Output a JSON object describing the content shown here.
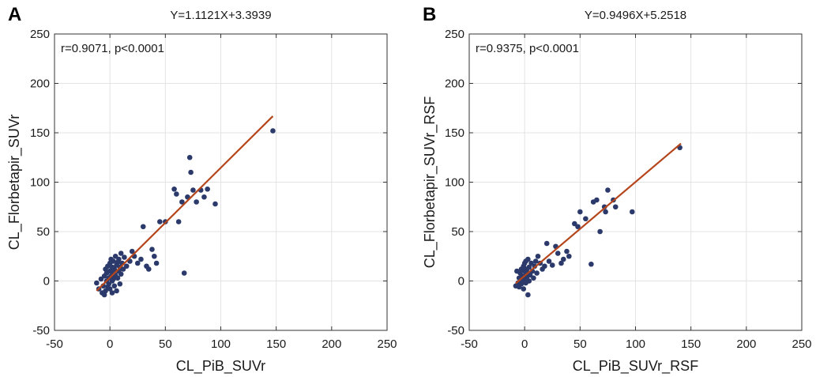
{
  "chart_data": [
    {
      "type": "scatter",
      "panel_letter": "A",
      "title": "Y=1.1121X+3.3939",
      "annotation": "r=0.9071, p<0.0001",
      "xlabel": "CL_PiB_SUVr",
      "ylabel": "CL_Florbetapir_SUVr",
      "xlim": [
        -50,
        250
      ],
      "ylim": [
        -50,
        250
      ],
      "xticks": [
        "-50",
        "0",
        "50",
        "100",
        "150",
        "200",
        "250"
      ],
      "yticks": [
        "-50",
        "0",
        "50",
        "100",
        "150",
        "200",
        "250"
      ],
      "grid": true,
      "marker_color": "#2b3a6b",
      "fit_color": "#b5451b",
      "fit": {
        "slope": 1.1121,
        "intercept": 3.3939,
        "x_range": [
          -12,
          147
        ]
      },
      "points": [
        [
          -12,
          -2
        ],
        [
          -10,
          -8
        ],
        [
          -8,
          2
        ],
        [
          -7,
          -12
        ],
        [
          -6,
          -5
        ],
        [
          -5,
          5
        ],
        [
          -5,
          -14
        ],
        [
          -4,
          -10
        ],
        [
          -4,
          12
        ],
        [
          -3,
          0
        ],
        [
          -3,
          8
        ],
        [
          -2,
          -6
        ],
        [
          -2,
          15
        ],
        [
          -1,
          3
        ],
        [
          -1,
          -3
        ],
        [
          0,
          10
        ],
        [
          0,
          18
        ],
        [
          0,
          -8
        ],
        [
          1,
          5
        ],
        [
          1,
          22
        ],
        [
          2,
          0
        ],
        [
          2,
          14
        ],
        [
          2,
          -12
        ],
        [
          3,
          8
        ],
        [
          3,
          20
        ],
        [
          3,
          2
        ],
        [
          4,
          -5
        ],
        [
          4,
          12
        ],
        [
          5,
          25
        ],
        [
          5,
          6
        ],
        [
          6,
          16
        ],
        [
          6,
          -10
        ],
        [
          7,
          3
        ],
        [
          7,
          19
        ],
        [
          8,
          10
        ],
        [
          8,
          22
        ],
        [
          9,
          -3
        ],
        [
          9,
          14
        ],
        [
          10,
          28
        ],
        [
          10,
          7
        ],
        [
          11,
          18
        ],
        [
          12,
          12
        ],
        [
          13,
          24
        ],
        [
          15,
          15
        ],
        [
          18,
          20
        ],
        [
          20,
          30
        ],
        [
          22,
          25
        ],
        [
          25,
          18
        ],
        [
          28,
          22
        ],
        [
          30,
          55
        ],
        [
          33,
          15
        ],
        [
          35,
          12
        ],
        [
          38,
          32
        ],
        [
          40,
          25
        ],
        [
          42,
          18
        ],
        [
          45,
          60
        ],
        [
          50,
          60
        ],
        [
          58,
          93
        ],
        [
          60,
          88
        ],
        [
          62,
          60
        ],
        [
          65,
          80
        ],
        [
          67,
          8
        ],
        [
          70,
          85
        ],
        [
          72,
          125
        ],
        [
          73,
          110
        ],
        [
          75,
          92
        ],
        [
          78,
          80
        ],
        [
          82,
          92
        ],
        [
          85,
          85
        ],
        [
          88,
          93
        ],
        [
          95,
          78
        ],
        [
          147,
          152
        ]
      ]
    },
    {
      "type": "scatter",
      "panel_letter": "B",
      "title": "Y=0.9496X+5.2518",
      "annotation": "r=0.9375, p<0.0001",
      "xlabel": "CL_PiB_SUVr_RSF",
      "ylabel": "CL_Florbetapir_SUVr_RSF",
      "xlim": [
        -50,
        250
      ],
      "ylim": [
        -50,
        250
      ],
      "xticks": [
        "-50",
        "0",
        "50",
        "100",
        "150",
        "200",
        "250"
      ],
      "yticks": [
        "-50",
        "0",
        "50",
        "100",
        "150",
        "200",
        "250"
      ],
      "grid": true,
      "marker_color": "#2b3a6b",
      "fit_color": "#b5451b",
      "fit": {
        "slope": 0.9496,
        "intercept": 5.2518,
        "x_range": [
          -8,
          141
        ]
      },
      "points": [
        [
          -8,
          -5
        ],
        [
          -7,
          10
        ],
        [
          -6,
          -2
        ],
        [
          -5,
          3
        ],
        [
          -5,
          -6
        ],
        [
          -4,
          8
        ],
        [
          -3,
          -3
        ],
        [
          -3,
          12
        ],
        [
          -2,
          0
        ],
        [
          -2,
          5
        ],
        [
          -1,
          -8
        ],
        [
          -1,
          15
        ],
        [
          0,
          2
        ],
        [
          0,
          10
        ],
        [
          0,
          18
        ],
        [
          1,
          -2
        ],
        [
          1,
          6
        ],
        [
          1,
          20
        ],
        [
          2,
          4
        ],
        [
          2,
          12
        ],
        [
          3,
          -14
        ],
        [
          3,
          8
        ],
        [
          3,
          22
        ],
        [
          4,
          0
        ],
        [
          4,
          14
        ],
        [
          5,
          6
        ],
        [
          6,
          18
        ],
        [
          7,
          10
        ],
        [
          8,
          3
        ],
        [
          9,
          15
        ],
        [
          10,
          20
        ],
        [
          11,
          8
        ],
        [
          12,
          25
        ],
        [
          14,
          18
        ],
        [
          16,
          12
        ],
        [
          18,
          15
        ],
        [
          20,
          38
        ],
        [
          22,
          20
        ],
        [
          25,
          16
        ],
        [
          28,
          35
        ],
        [
          30,
          28
        ],
        [
          33,
          18
        ],
        [
          35,
          22
        ],
        [
          38,
          30
        ],
        [
          40,
          25
        ],
        [
          45,
          58
        ],
        [
          48,
          55
        ],
        [
          50,
          70
        ],
        [
          55,
          63
        ],
        [
          60,
          17
        ],
        [
          62,
          80
        ],
        [
          65,
          82
        ],
        [
          68,
          50
        ],
        [
          72,
          75
        ],
        [
          73,
          70
        ],
        [
          75,
          92
        ],
        [
          80,
          82
        ],
        [
          82,
          75
        ],
        [
          97,
          70
        ],
        [
          140,
          135
        ]
      ]
    }
  ]
}
